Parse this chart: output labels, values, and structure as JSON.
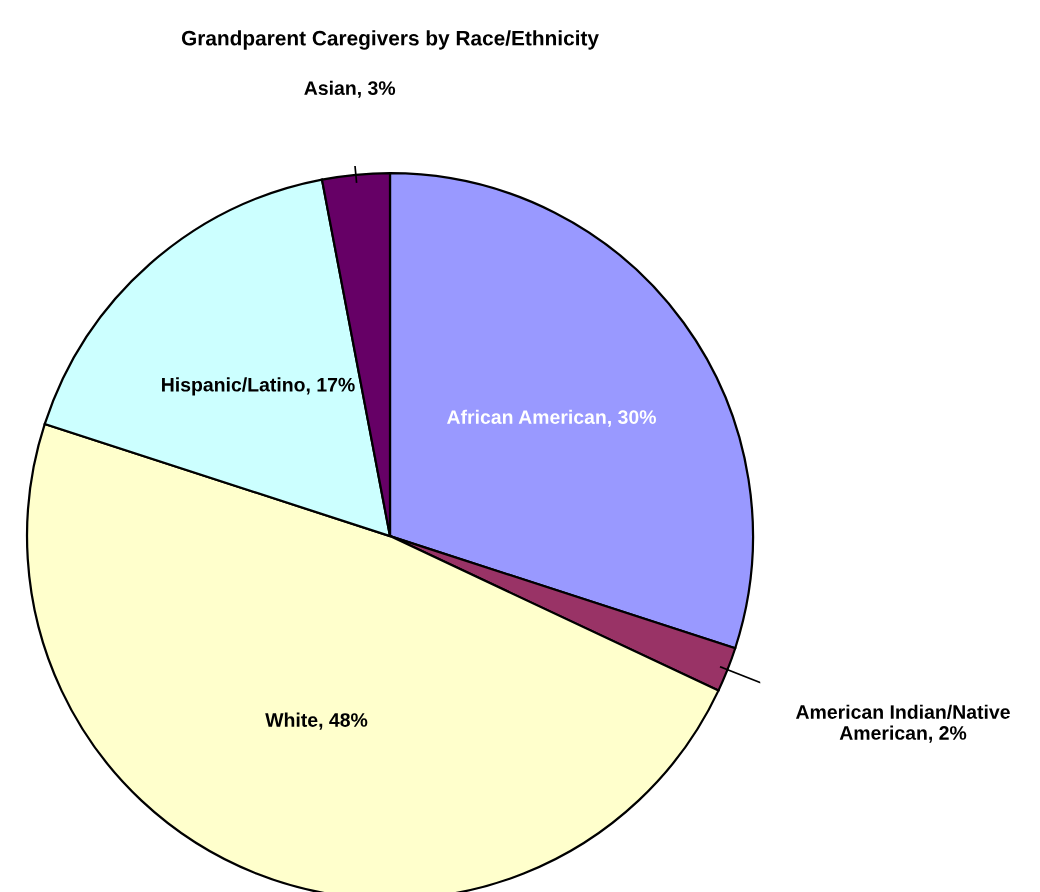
{
  "chart_data": {
    "type": "pie",
    "title": "Grandparent Caregivers by Race/Ethnicity",
    "categories": [
      "African American",
      "American Indian/Native American",
      "White",
      "Hispanic/Latino",
      "Asian"
    ],
    "values": [
      30,
      2,
      48,
      17,
      3
    ],
    "value_labels": [
      "30%",
      "2%",
      "48%",
      "17%",
      "3%"
    ],
    "colors": [
      "#9999ff",
      "#993366",
      "#ffffcc",
      "#ccffff",
      "#660066"
    ],
    "legend": false
  }
}
